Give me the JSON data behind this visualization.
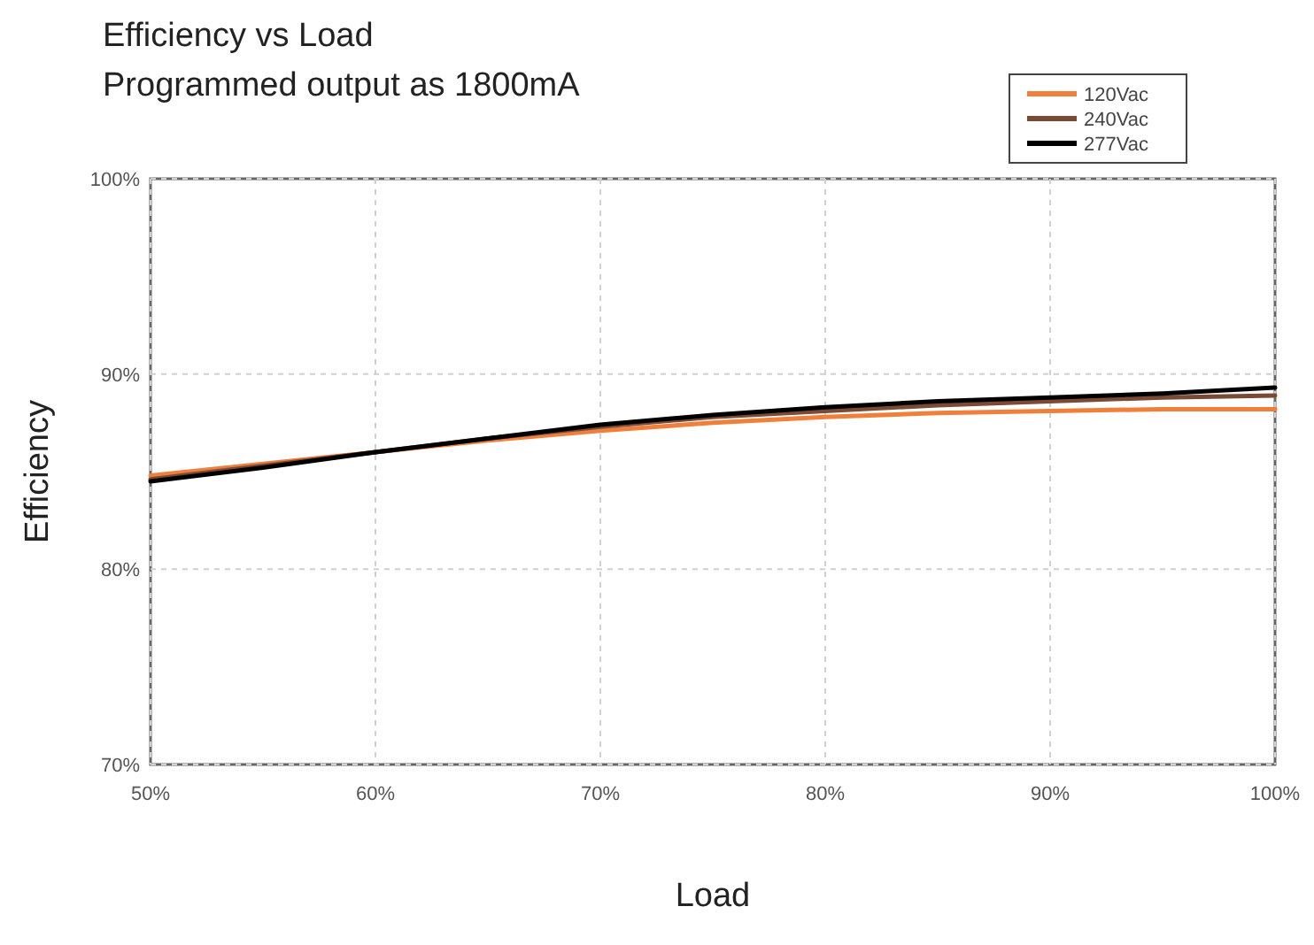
{
  "chart_data": {
    "type": "line",
    "title": "Efficiency vs Load",
    "subtitle": "Programmed output as 1800mA",
    "xlabel": "Load",
    "ylabel": "Efficiency",
    "x": [
      50,
      55,
      60,
      65,
      70,
      75,
      80,
      85,
      90,
      95,
      100
    ],
    "series": [
      {
        "name": "120Vac",
        "color": "#f07f3c",
        "values": [
          84.8,
          85.4,
          86.0,
          86.6,
          87.1,
          87.5,
          87.8,
          88.0,
          88.1,
          88.2,
          88.2
        ]
      },
      {
        "name": "240Vac",
        "color": "#7b4a35",
        "values": [
          84.6,
          85.3,
          86.0,
          86.7,
          87.3,
          87.8,
          88.1,
          88.4,
          88.6,
          88.8,
          88.9
        ]
      },
      {
        "name": "277Vac",
        "color": "#000000",
        "values": [
          84.5,
          85.2,
          86.0,
          86.7,
          87.4,
          87.9,
          88.3,
          88.6,
          88.8,
          89.0,
          89.3
        ]
      }
    ],
    "xlim": [
      50,
      100
    ],
    "ylim": [
      70,
      100
    ],
    "xticks": [
      {
        "value": 50,
        "label": "50%"
      },
      {
        "value": 60,
        "label": "60%"
      },
      {
        "value": 70,
        "label": "70%"
      },
      {
        "value": 80,
        "label": "80%"
      },
      {
        "value": 90,
        "label": "90%"
      },
      {
        "value": 100,
        "label": "100%"
      }
    ],
    "yticks": [
      {
        "value": 70,
        "label": "70%"
      },
      {
        "value": 80,
        "label": "80%"
      },
      {
        "value": 90,
        "label": "90%"
      },
      {
        "value": 100,
        "label": "100%"
      }
    ],
    "grid": true,
    "legend": "top right",
    "marker": "none",
    "line_style": "solid"
  }
}
